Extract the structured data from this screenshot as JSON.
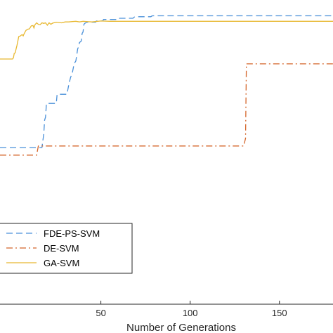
{
  "chart_data": {
    "type": "line",
    "xlabel": "Number of Generations",
    "ylabel": "",
    "title": "",
    "xlim": [
      -6.5,
      180
    ],
    "ylim": [
      0,
      1
    ],
    "x_ticks": [
      50,
      100,
      150
    ],
    "grid": false,
    "legend_placement": "bottom-left",
    "series": [
      {
        "name": "FDE-PS-SVM",
        "color": "#4a90d9",
        "style": "dashed",
        "points": [
          [
            -6.5,
            0.515
          ],
          [
            15,
            0.515
          ],
          [
            17,
            0.515
          ],
          [
            18,
            0.56
          ],
          [
            18.5,
            0.605
          ],
          [
            19,
            0.615
          ],
          [
            19.5,
            0.66
          ],
          [
            25,
            0.66
          ],
          [
            25.5,
            0.69
          ],
          [
            31,
            0.69
          ],
          [
            32,
            0.72
          ],
          [
            33,
            0.745
          ],
          [
            34,
            0.76
          ],
          [
            35,
            0.79
          ],
          [
            36,
            0.8
          ],
          [
            37,
            0.84
          ],
          [
            37.5,
            0.845
          ],
          [
            38,
            0.86
          ],
          [
            39,
            0.865
          ],
          [
            39.5,
            0.89
          ],
          [
            40,
            0.895
          ],
          [
            40.5,
            0.92
          ],
          [
            41,
            0.923
          ],
          [
            41.5,
            0.925
          ],
          [
            42,
            0.927
          ],
          [
            47,
            0.927
          ],
          [
            47.5,
            0.931
          ],
          [
            51,
            0.931
          ],
          [
            51.5,
            0.936
          ],
          [
            60,
            0.936
          ],
          [
            60.5,
            0.94
          ],
          [
            68,
            0.94
          ],
          [
            68.5,
            0.943
          ],
          [
            69,
            0.945
          ],
          [
            78,
            0.945
          ],
          [
            78.5,
            0.947
          ],
          [
            79,
            0.948
          ],
          [
            180,
            0.948
          ]
        ]
      },
      {
        "name": "DE-SVM",
        "color": "#d4652a",
        "style": "dashdot",
        "points": [
          [
            -6.5,
            0.49
          ],
          [
            14,
            0.49
          ],
          [
            15,
            0.52
          ],
          [
            130,
            0.52
          ],
          [
            131,
            0.545
          ],
          [
            131.5,
            0.79
          ],
          [
            180,
            0.79
          ]
        ]
      },
      {
        "name": "GA-SVM",
        "color": "#e8b830",
        "style": "solid",
        "points": [
          [
            -6.5,
            0.806
          ],
          [
            0.5,
            0.806
          ],
          [
            1,
            0.81
          ],
          [
            1.5,
            0.825
          ],
          [
            2,
            0.826
          ],
          [
            2.5,
            0.839
          ],
          [
            3,
            0.85
          ],
          [
            3.5,
            0.865
          ],
          [
            4,
            0.88
          ],
          [
            5,
            0.882
          ],
          [
            5.5,
            0.885
          ],
          [
            6,
            0.886
          ],
          [
            6.5,
            0.882
          ],
          [
            7,
            0.889
          ],
          [
            8,
            0.9
          ],
          [
            9,
            0.904
          ],
          [
            10,
            0.905
          ],
          [
            11,
            0.915
          ],
          [
            12,
            0.916
          ],
          [
            12.5,
            0.908
          ],
          [
            13,
            0.918
          ],
          [
            14,
            0.925
          ],
          [
            15,
            0.92
          ],
          [
            16,
            0.919
          ],
          [
            17,
            0.925
          ],
          [
            18,
            0.923
          ],
          [
            19,
            0.925
          ],
          [
            20,
            0.917
          ],
          [
            21,
            0.925
          ],
          [
            22,
            0.92
          ],
          [
            23,
            0.924
          ],
          [
            25,
            0.927
          ],
          [
            28,
            0.925
          ],
          [
            30,
            0.928
          ],
          [
            32,
            0.928
          ],
          [
            34,
            0.929
          ],
          [
            36,
            0.93
          ],
          [
            38,
            0.928
          ],
          [
            40,
            0.93
          ],
          [
            45,
            0.928
          ],
          [
            50,
            0.931
          ],
          [
            55,
            0.93
          ],
          [
            60,
            0.93
          ],
          [
            100,
            0.93
          ],
          [
            180,
            0.93
          ]
        ]
      }
    ]
  }
}
